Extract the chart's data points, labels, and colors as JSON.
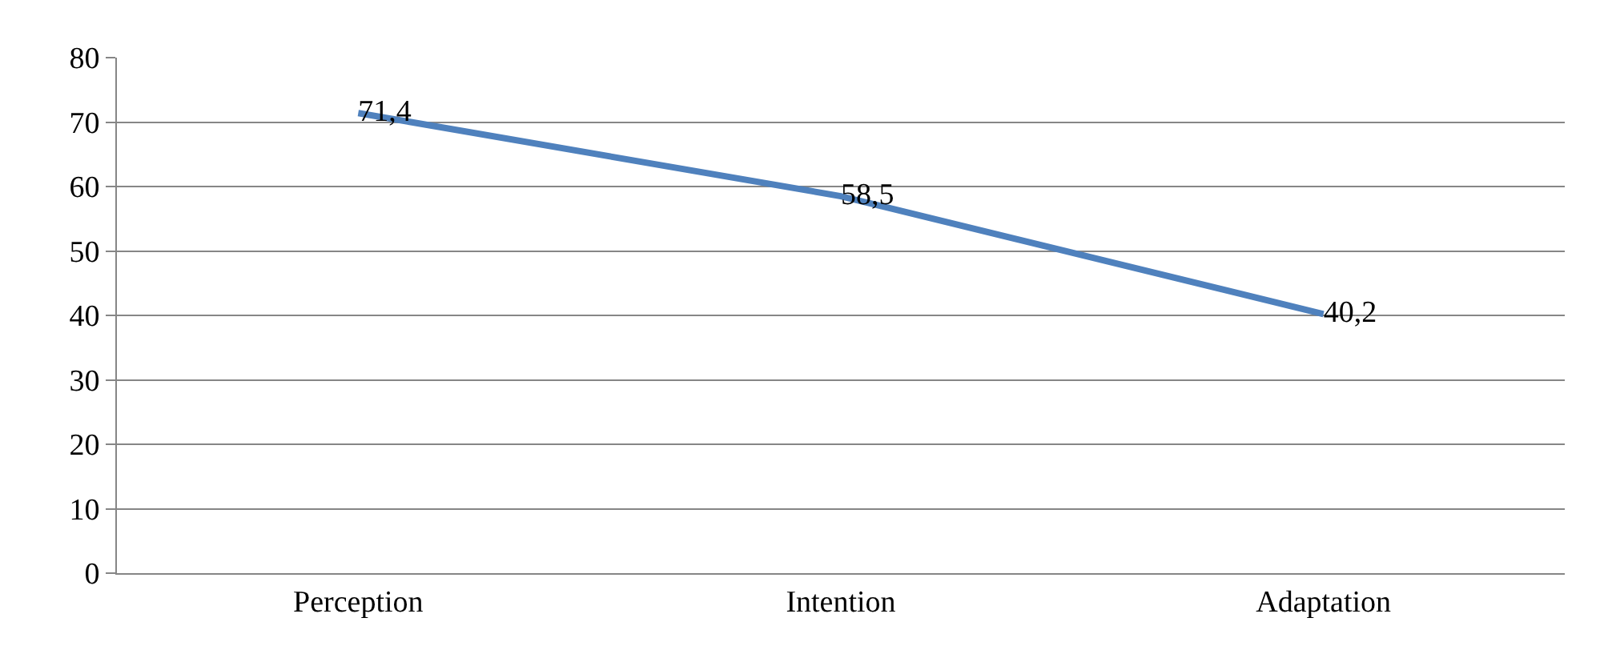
{
  "chart_data": {
    "type": "line",
    "categories": [
      "Perception",
      "Intention",
      "Adaptation"
    ],
    "series": [
      {
        "color": "#4f81bd",
        "values": [
          71.4,
          58.5,
          40.2
        ],
        "value_labels": [
          "71,4",
          "58,5",
          "40,2"
        ]
      }
    ],
    "ylim": [
      0,
      80
    ],
    "yticks": [
      0,
      10,
      20,
      30,
      40,
      50,
      60,
      70,
      80
    ],
    "grid": "y",
    "legend": false,
    "marker": "none",
    "line_style": "solid"
  }
}
